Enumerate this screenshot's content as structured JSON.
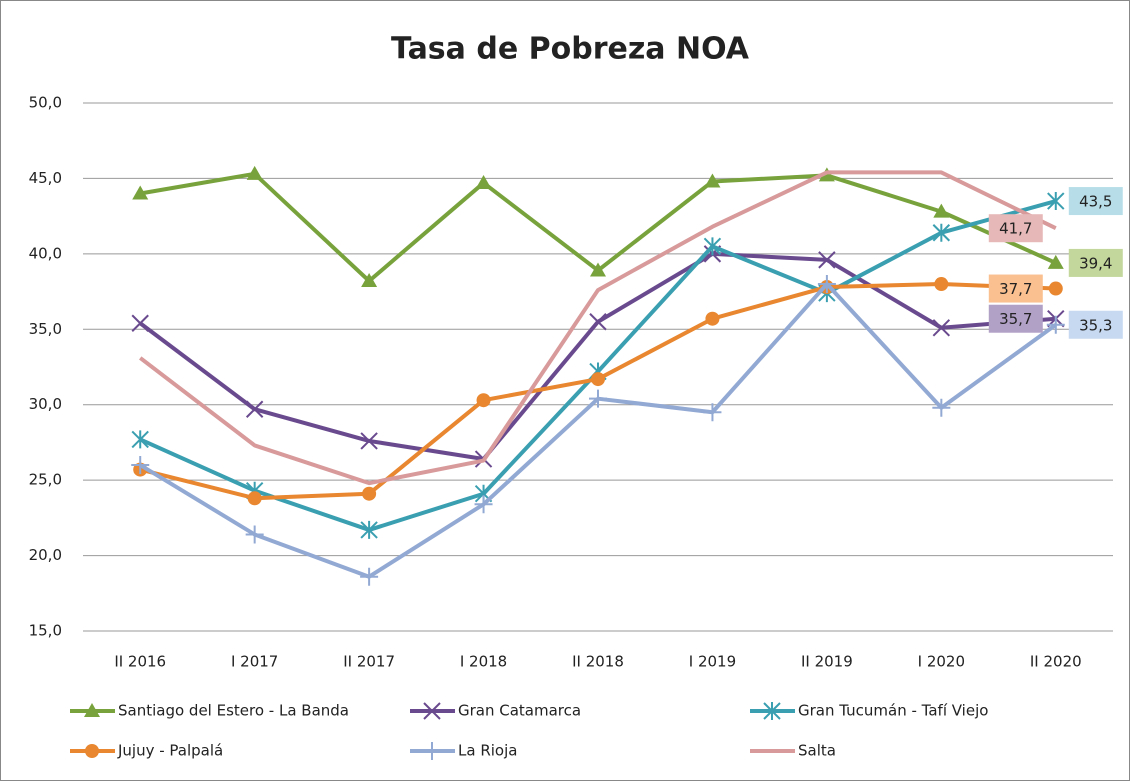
{
  "chart_data": {
    "type": "line",
    "title": "Tasa de Pobreza NOA",
    "categories": [
      "II 2016",
      "I 2017",
      "II 2017",
      "I 2018",
      "II 2018",
      "I 2019",
      "II 2019",
      "I 2020",
      "II 2020"
    ],
    "ylim": [
      15,
      50
    ],
    "yticks": [
      {
        "value": 15,
        "label": "15,0"
      },
      {
        "value": 20,
        "label": "20,0"
      },
      {
        "value": 25,
        "label": "25,0"
      },
      {
        "value": 30,
        "label": "30,0"
      },
      {
        "value": 35,
        "label": "35,0"
      },
      {
        "value": 40,
        "label": "40,0"
      },
      {
        "value": 45,
        "label": "45,0"
      },
      {
        "value": 50,
        "label": "50,0"
      }
    ],
    "grid": true,
    "legend": "bottom",
    "series": [
      {
        "name": "Santiago del Estero - La Banda",
        "color": "#78a33c",
        "label_color": "#c3d69b",
        "marker": "triangle",
        "values": [
          44.0,
          45.3,
          38.2,
          44.7,
          38.9,
          44.8,
          45.2,
          42.8,
          39.4
        ],
        "value_labels": [
          null,
          null,
          null,
          null,
          null,
          null,
          null,
          null,
          "39,4"
        ]
      },
      {
        "name": "Gran Catamarca",
        "color": "#6a4a8f",
        "label_color": "#b2a1c7",
        "marker": "x",
        "values": [
          35.4,
          29.7,
          27.6,
          26.4,
          35.5,
          40.0,
          39.6,
          35.1,
          35.7
        ],
        "value_labels": [
          null,
          null,
          null,
          null,
          null,
          null,
          null,
          null,
          "35,7"
        ]
      },
      {
        "name": "Gran Tucumán - Tafí Viejo",
        "color": "#3a9fb0",
        "label_color": "#b7dee8",
        "marker": "star",
        "values": [
          27.7,
          24.3,
          21.7,
          24.1,
          32.2,
          40.5,
          37.4,
          41.4,
          43.5
        ],
        "value_labels": [
          null,
          null,
          null,
          null,
          null,
          null,
          null,
          null,
          "43,5"
        ]
      },
      {
        "name": "Jujuy - Palpalá",
        "color": "#e8872f",
        "label_color": "#fac090",
        "marker": "circle",
        "values": [
          25.7,
          23.8,
          24.1,
          30.3,
          31.7,
          35.7,
          37.8,
          38.0,
          37.7
        ],
        "value_labels": [
          null,
          null,
          null,
          null,
          null,
          null,
          null,
          null,
          "37,7"
        ]
      },
      {
        "name": "La Rioja",
        "color": "#92a9d4",
        "label_color": "#c6d9f1",
        "marker": "plus",
        "values": [
          26.0,
          21.4,
          18.6,
          23.4,
          30.4,
          29.5,
          38.0,
          29.8,
          35.3
        ],
        "value_labels": [
          null,
          null,
          null,
          null,
          null,
          null,
          null,
          null,
          "35,3"
        ]
      },
      {
        "name": "Salta",
        "color": "#d89a9a",
        "label_color": "#e6b9b8",
        "marker": "none",
        "values": [
          33.1,
          27.3,
          24.8,
          26.3,
          37.6,
          41.8,
          45.4,
          45.4,
          41.7
        ],
        "value_labels": [
          null,
          null,
          null,
          null,
          null,
          null,
          null,
          null,
          "41,7"
        ]
      }
    ]
  }
}
